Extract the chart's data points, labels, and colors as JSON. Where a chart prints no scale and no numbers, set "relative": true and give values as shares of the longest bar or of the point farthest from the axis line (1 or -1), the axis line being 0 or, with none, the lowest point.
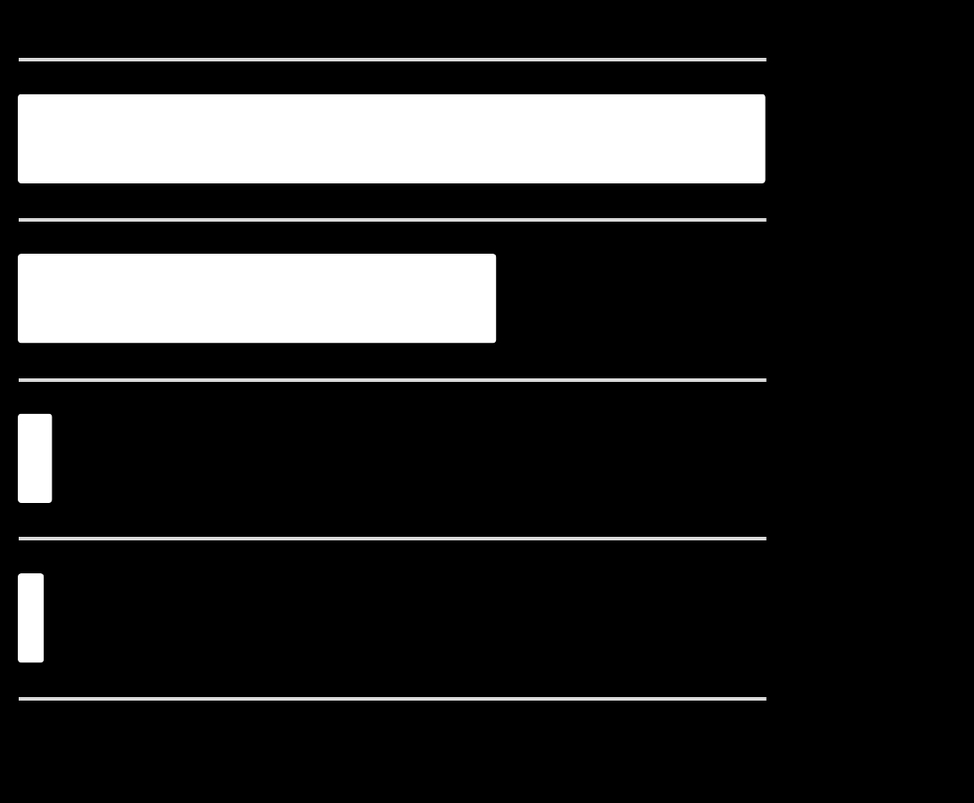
{
  "chart_data": {
    "type": "bar",
    "orientation": "horizontal",
    "relative": true,
    "categories": [
      null,
      null,
      null,
      null
    ],
    "values": [
      1,
      0.64,
      0.046,
      0.035
    ],
    "color": "#ffffff",
    "grid": "y"
  }
}
